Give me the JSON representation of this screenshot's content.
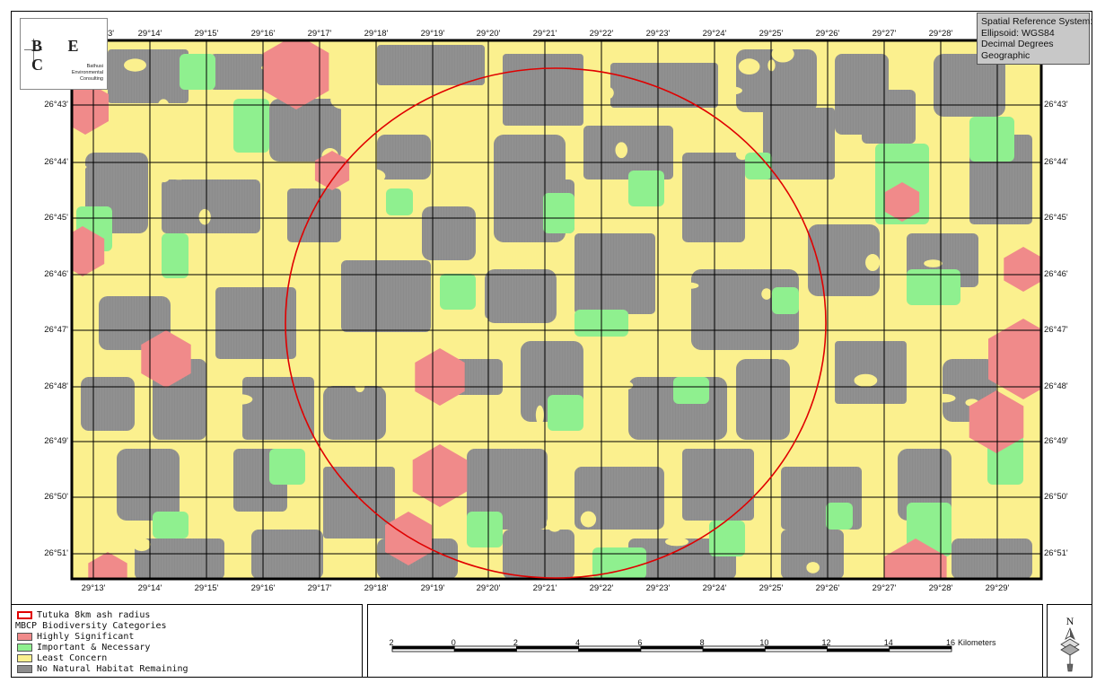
{
  "colors": {
    "highly_significant": "#f08a8a",
    "important_necessary": "#8ff08f",
    "least_concern": "#fbf08e",
    "no_habitat": "#8c8c8c",
    "ash_radius": "#e00000",
    "grid": "#000000"
  },
  "logo": {
    "letters": "B E C",
    "line1": "Bathusi",
    "line2": "Environmental",
    "line3": "Consulting"
  },
  "spatial_reference": {
    "line1": "Spatial Reference System:",
    "line2": "Ellipsoid: WGS84",
    "line3": "Decimal Degrees",
    "line4": "Geographic"
  },
  "top_longitudes": [
    "3'",
    "29°14'",
    "29°15'",
    "29°16'",
    "29°17'",
    "29°18'",
    "29°19'",
    "29°20'",
    "29°21'",
    "29°22'",
    "29°23'",
    "29°24'",
    "29°25'",
    "29°26'",
    "29°27'",
    "29°28'"
  ],
  "bottom_longitudes": [
    "29°13'",
    "29°14'",
    "29°15'",
    "29°16'",
    "29°17'",
    "29°18'",
    "29°19'",
    "29°20'",
    "29°21'",
    "29°22'",
    "29°23'",
    "29°24'",
    "29°25'",
    "29°26'",
    "29°27'",
    "29°28'",
    "29°29'"
  ],
  "left_latitudes": [
    "26°43'",
    "26°44'",
    "26°45'",
    "26°46'",
    "26°47'",
    "26°48'",
    "26°49'",
    "26°50'",
    "26°51'"
  ],
  "right_latitudes": [
    "26°43'",
    "26°44'",
    "26°45'",
    "26°46'",
    "26°47'",
    "26°48'",
    "26°49'",
    "26°50'",
    "26°51'"
  ],
  "legend": {
    "ash_radius": "Tutuka 8km ash radius",
    "category_title": "MBCP Biodiversity Categories",
    "items": [
      "Highly Significant",
      "Important & Necessary",
      "Least Concern",
      "No Natural Habitat Remaining"
    ]
  },
  "scale_bar": {
    "ticks": [
      "2",
      "0",
      "2",
      "4",
      "6",
      "8",
      "10",
      "12",
      "14",
      "16"
    ],
    "units": "Kilometers"
  },
  "north_arrow": {
    "label": "N"
  }
}
